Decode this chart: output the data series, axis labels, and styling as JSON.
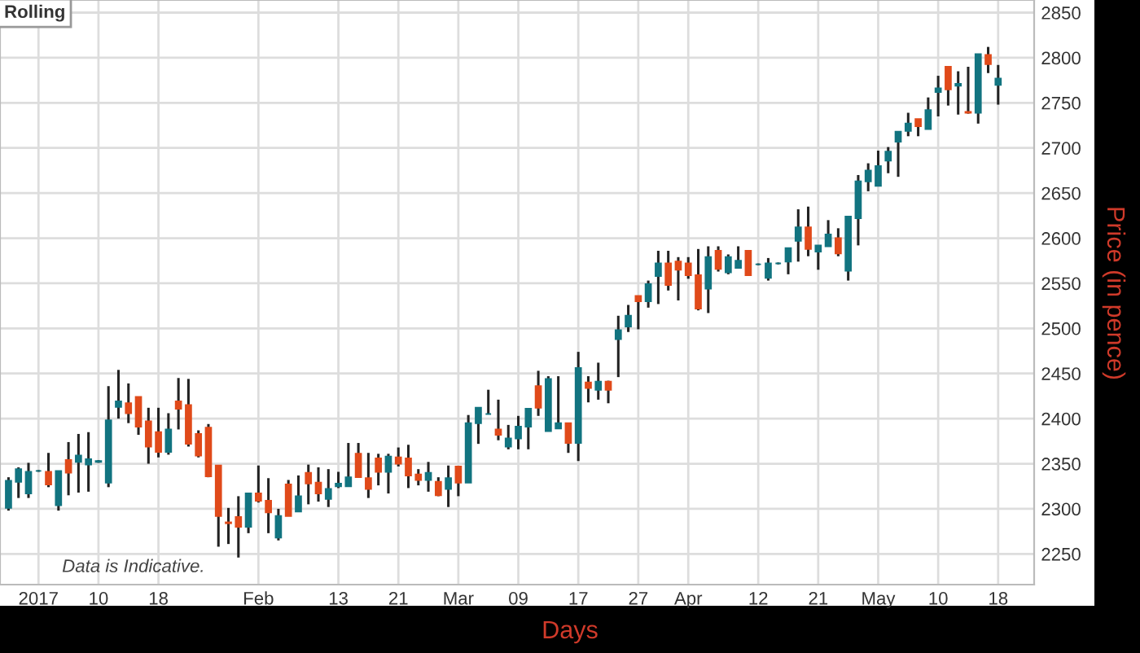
{
  "chart_data": {
    "type": "candlestick",
    "title": "Rolling",
    "xlabel": "Days",
    "ylabel": "Price (in pence)",
    "annotations": [
      "Data is Indicative."
    ],
    "categories": [
      null,
      null,
      null,
      "2017",
      null,
      null,
      null,
      null,
      null,
      "10",
      null,
      null,
      null,
      null,
      null,
      "18",
      null,
      null,
      null,
      null,
      null,
      null,
      null,
      null,
      null,
      "Feb",
      null,
      null,
      null,
      null,
      null,
      null,
      null,
      "13",
      null,
      null,
      null,
      null,
      null,
      "21",
      null,
      null,
      null,
      null,
      null,
      "Mar",
      null,
      null,
      null,
      null,
      null,
      "09",
      null,
      null,
      null,
      null,
      null,
      "17",
      null,
      null,
      null,
      null,
      null,
      "27",
      null,
      null,
      null,
      null,
      "Apr",
      null,
      null,
      null,
      null,
      null,
      null,
      "12",
      null,
      null,
      null,
      null,
      null,
      "21",
      null,
      null,
      null,
      null,
      null,
      "May",
      null,
      null,
      null,
      null,
      null,
      "10",
      null,
      null,
      null,
      null,
      null,
      "18"
    ],
    "ohlc": [
      [
        2301,
        2335,
        2298,
        2331
      ],
      [
        2330,
        2346,
        2312,
        2344
      ],
      [
        2317,
        2351,
        2312,
        2341
      ],
      [
        2342,
        2343,
        2341,
        2342
      ],
      [
        2341,
        2362,
        2324,
        2327
      ],
      [
        2304,
        2342,
        2298,
        2342
      ],
      [
        2354,
        2374,
        2315,
        2340
      ],
      [
        2352,
        2383,
        2318,
        2359
      ],
      [
        2349,
        2385,
        2319,
        2355
      ],
      [
        2352,
        2354,
        2351,
        2353
      ],
      [
        2329,
        2436,
        2324,
        2398
      ],
      [
        2413,
        2454,
        2400,
        2419
      ],
      [
        2417,
        2439,
        2395,
        2406
      ],
      [
        2424,
        2424,
        2382,
        2391
      ],
      [
        2397,
        2412,
        2350,
        2369
      ],
      [
        2385,
        2412,
        2357,
        2363
      ],
      [
        2363,
        2406,
        2360,
        2388
      ],
      [
        2419,
        2445,
        2388,
        2411
      ],
      [
        2415,
        2444,
        2369,
        2372
      ],
      [
        2383,
        2387,
        2357,
        2359
      ],
      [
        2390,
        2394,
        2335,
        2336
      ],
      [
        2348,
        2348,
        2258,
        2292
      ],
      [
        2285,
        2301,
        2261,
        2284
      ],
      [
        2291,
        2314,
        2246,
        2280
      ],
      [
        2280,
        2317,
        2273,
        2317
      ],
      [
        2317,
        2348,
        2307,
        2309
      ],
      [
        2309,
        2334,
        2273,
        2296
      ],
      [
        2268,
        2300,
        2265,
        2292
      ],
      [
        2327,
        2332,
        2292,
        2292
      ],
      [
        2297,
        2337,
        2297,
        2314
      ],
      [
        2340,
        2349,
        2305,
        2328
      ],
      [
        2329,
        2346,
        2308,
        2317
      ],
      [
        2311,
        2344,
        2302,
        2322
      ],
      [
        2325,
        2341,
        2323,
        2328
      ],
      [
        2325,
        2373,
        2325,
        2335
      ],
      [
        2361,
        2373,
        2335,
        2335
      ],
      [
        2334,
        2362,
        2312,
        2322
      ],
      [
        2356,
        2361,
        2326,
        2341
      ],
      [
        2341,
        2361,
        2317,
        2358
      ],
      [
        2357,
        2368,
        2347,
        2350
      ],
      [
        2356,
        2371,
        2323,
        2337
      ],
      [
        2338,
        2344,
        2326,
        2332
      ],
      [
        2332,
        2352,
        2319,
        2340
      ],
      [
        2330,
        2335,
        2314,
        2315
      ],
      [
        2322,
        2348,
        2302,
        2334
      ],
      [
        2347,
        2347,
        2314,
        2329
      ],
      [
        2329,
        2404,
        2329,
        2395
      ],
      [
        2395,
        2412,
        2372,
        2412
      ],
      [
        2405,
        2432,
        2405,
        2405
      ],
      [
        2388,
        2421,
        2376,
        2382
      ],
      [
        2369,
        2393,
        2366,
        2378
      ],
      [
        2378,
        2403,
        2366,
        2391
      ],
      [
        2391,
        2411,
        2366,
        2411
      ],
      [
        2436,
        2453,
        2403,
        2412
      ],
      [
        2386,
        2447,
        2386,
        2444
      ],
      [
        2389,
        2447,
        2389,
        2395
      ],
      [
        2395,
        2395,
        2362,
        2373
      ],
      [
        2373,
        2474,
        2353,
        2456
      ],
      [
        2440,
        2447,
        2418,
        2434
      ],
      [
        2432,
        2462,
        2421,
        2441
      ],
      [
        2441,
        2442,
        2417,
        2432
      ],
      [
        2488,
        2514,
        2446,
        2498
      ],
      [
        2502,
        2526,
        2496,
        2514
      ],
      [
        2536,
        2536,
        2499,
        2530
      ],
      [
        2530,
        2553,
        2523,
        2549
      ],
      [
        2558,
        2586,
        2527,
        2572
      ],
      [
        2572,
        2586,
        2542,
        2548
      ],
      [
        2574,
        2579,
        2531,
        2565
      ],
      [
        2572,
        2579,
        2555,
        2559
      ],
      [
        2559,
        2588,
        2520,
        2522
      ],
      [
        2544,
        2591,
        2517,
        2579
      ],
      [
        2586,
        2591,
        2563,
        2566
      ],
      [
        2562,
        2582,
        2560,
        2579
      ],
      [
        2567,
        2591,
        2567,
        2575
      ],
      [
        2586,
        2586,
        2559,
        2559
      ],
      [
        2571,
        2572,
        2570,
        2571
      ],
      [
        2556,
        2578,
        2553,
        2572
      ],
      [
        2572,
        2573,
        2571,
        2572
      ],
      [
        2574,
        2589,
        2560,
        2589
      ],
      [
        2597,
        2632,
        2574,
        2612
      ],
      [
        2612,
        2635,
        2580,
        2588
      ],
      [
        2585,
        2592,
        2565,
        2592
      ],
      [
        2591,
        2620,
        2591,
        2604
      ],
      [
        2600,
        2611,
        2580,
        2583
      ],
      [
        2564,
        2624,
        2553,
        2624
      ],
      [
        2622,
        2670,
        2592,
        2663
      ],
      [
        2663,
        2683,
        2652,
        2675
      ],
      [
        2658,
        2697,
        2658,
        2680
      ],
      [
        2686,
        2701,
        2672,
        2696
      ],
      [
        2707,
        2718,
        2668,
        2718
      ],
      [
        2719,
        2739,
        2713,
        2727
      ],
      [
        2732,
        2732,
        2713,
        2724
      ],
      [
        2721,
        2756,
        2721,
        2742
      ],
      [
        2762,
        2780,
        2735,
        2766
      ],
      [
        2790,
        2790,
        2747,
        2765
      ],
      [
        2769,
        2785,
        2737,
        2771
      ],
      [
        2740,
        2790,
        2738,
        2739
      ],
      [
        2739,
        2804,
        2727,
        2804
      ],
      [
        2803,
        2812,
        2783,
        2793
      ],
      [
        2770,
        2792,
        2748,
        2777
      ]
    ],
    "colors": [
      "#127480",
      "#127480",
      "#127480",
      "#127480",
      "#e04a1a",
      "#127480",
      "#e04a1a",
      "#127480",
      "#127480",
      "#127480",
      "#127480",
      "#127480",
      "#e04a1a",
      "#e04a1a",
      "#e04a1a",
      "#e04a1a",
      "#127480",
      "#e04a1a",
      "#e04a1a",
      "#e04a1a",
      "#e04a1a",
      "#e04a1a",
      "#e04a1a",
      "#e04a1a",
      "#127480",
      "#e04a1a",
      "#e04a1a",
      "#127480",
      "#e04a1a",
      "#127480",
      "#e04a1a",
      "#e04a1a",
      "#127480",
      "#127480",
      "#127480",
      "#e04a1a",
      "#e04a1a",
      "#e04a1a",
      "#127480",
      "#e04a1a",
      "#e04a1a",
      "#e04a1a",
      "#127480",
      "#e04a1a",
      "#127480",
      "#e04a1a",
      "#127480",
      "#127480",
      "#127480",
      "#e04a1a",
      "#127480",
      "#127480",
      "#127480",
      "#e04a1a",
      "#127480",
      "#127480",
      "#e04a1a",
      "#127480",
      "#e04a1a",
      "#127480",
      "#e04a1a",
      "#127480",
      "#127480",
      "#e04a1a",
      "#127480",
      "#127480",
      "#e04a1a",
      "#e04a1a",
      "#e04a1a",
      "#e04a1a",
      "#127480",
      "#e04a1a",
      "#127480",
      "#127480",
      "#e04a1a",
      "#127480",
      "#127480",
      "#127480",
      "#127480",
      "#127480",
      "#e04a1a",
      "#127480",
      "#127480",
      "#e04a1a",
      "#127480",
      "#127480",
      "#127480",
      "#127480",
      "#127480",
      "#127480",
      "#127480",
      "#e04a1a",
      "#127480",
      "#127480",
      "#e04a1a",
      "#127480",
      "#e04a1a",
      "#127480",
      "#e04a1a",
      "#127480"
    ],
    "ylim": [
      2216,
      2864
    ],
    "yticks": [
      2250,
      2300,
      2350,
      2400,
      2450,
      2500,
      2550,
      2600,
      2650,
      2700,
      2750,
      2800,
      2850
    ],
    "grid": true
  }
}
